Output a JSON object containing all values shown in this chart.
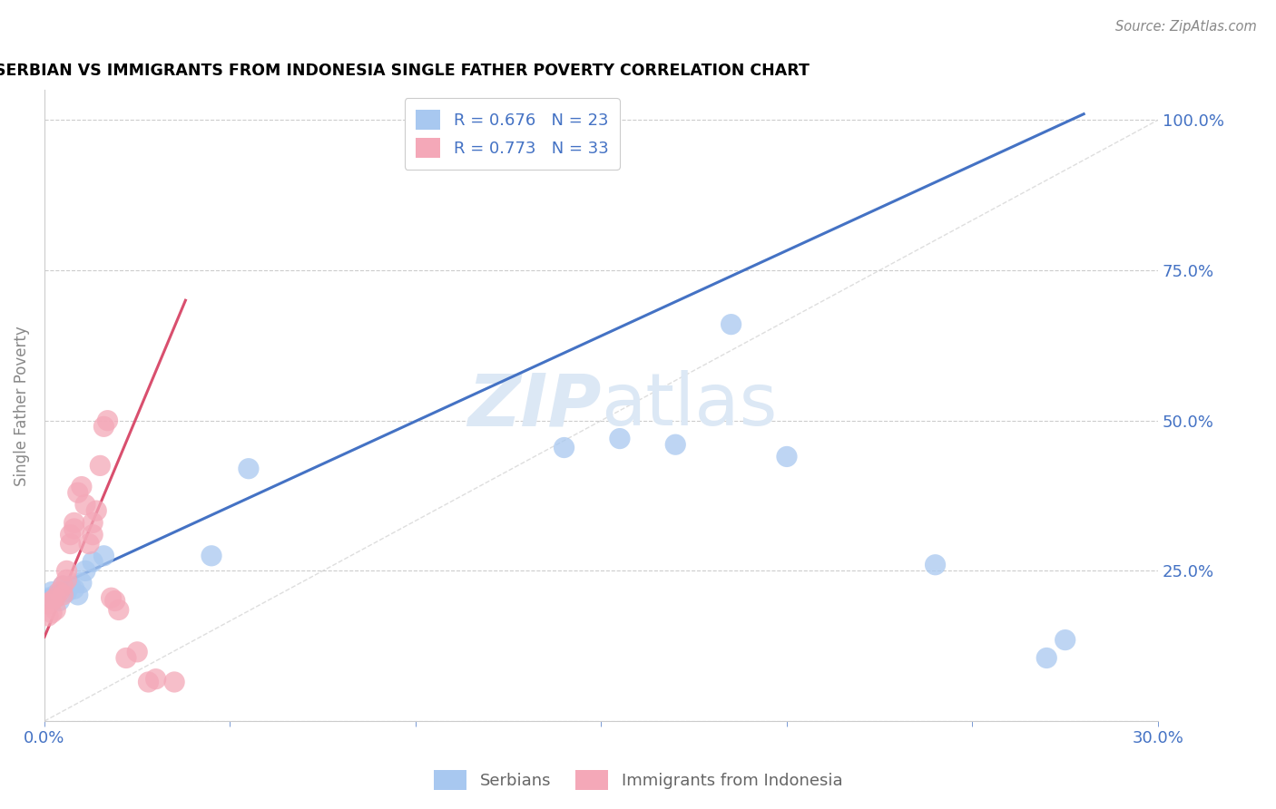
{
  "title": "SERBIAN VS IMMIGRANTS FROM INDONESIA SINGLE FATHER POVERTY CORRELATION CHART",
  "source": "Source: ZipAtlas.com",
  "ylabel": "Single Father Poverty",
  "right_yticks": [
    "100.0%",
    "75.0%",
    "50.0%",
    "25.0%"
  ],
  "right_ytick_vals": [
    1.0,
    0.75,
    0.5,
    0.25
  ],
  "legend_r_serbian": "R = 0.676",
  "legend_n_serbian": "N = 23",
  "legend_r_indonesia": "R = 0.773",
  "legend_n_indonesia": "N = 33",
  "legend_label_serbian": "Serbians",
  "legend_label_indonesia": "Immigrants from Indonesia",
  "serbian_color": "#a8c8f0",
  "serbian_line_color": "#4472c4",
  "indonesia_color": "#f4a8b8",
  "indonesia_line_color": "#d94f6e",
  "diagonal_color": "#d0d0d0",
  "watermark_color": "#dce8f5",
  "xmin": 0.0,
  "xmax": 0.3,
  "ymin": 0.0,
  "ymax": 1.05,
  "serbian_line_x0": 0.0,
  "serbian_line_y0": 0.215,
  "serbian_line_x1": 0.28,
  "serbian_line_y1": 1.01,
  "indonesia_line_x0": 0.0,
  "indonesia_line_y0": 0.14,
  "indonesia_line_x1": 0.038,
  "indonesia_line_y1": 0.7,
  "serbian_x": [
    0.001,
    0.002,
    0.003,
    0.004,
    0.005,
    0.006,
    0.007,
    0.008,
    0.009,
    0.01,
    0.011,
    0.013,
    0.016,
    0.045,
    0.055,
    0.14,
    0.155,
    0.17,
    0.185,
    0.2,
    0.24,
    0.27,
    0.275
  ],
  "serbian_y": [
    0.205,
    0.215,
    0.21,
    0.2,
    0.225,
    0.215,
    0.225,
    0.22,
    0.21,
    0.23,
    0.25,
    0.265,
    0.275,
    0.275,
    0.42,
    0.455,
    0.47,
    0.46,
    0.66,
    0.44,
    0.26,
    0.105,
    0.135
  ],
  "indonesia_x": [
    0.001,
    0.001,
    0.002,
    0.002,
    0.003,
    0.003,
    0.004,
    0.005,
    0.005,
    0.006,
    0.006,
    0.007,
    0.007,
    0.008,
    0.008,
    0.009,
    0.01,
    0.011,
    0.012,
    0.013,
    0.013,
    0.014,
    0.015,
    0.016,
    0.017,
    0.018,
    0.019,
    0.02,
    0.022,
    0.025,
    0.028,
    0.03,
    0.035
  ],
  "indonesia_y": [
    0.175,
    0.195,
    0.18,
    0.2,
    0.205,
    0.185,
    0.215,
    0.225,
    0.21,
    0.25,
    0.235,
    0.295,
    0.31,
    0.33,
    0.32,
    0.38,
    0.39,
    0.36,
    0.295,
    0.31,
    0.33,
    0.35,
    0.425,
    0.49,
    0.5,
    0.205,
    0.2,
    0.185,
    0.105,
    0.115,
    0.065,
    0.07,
    0.065
  ]
}
